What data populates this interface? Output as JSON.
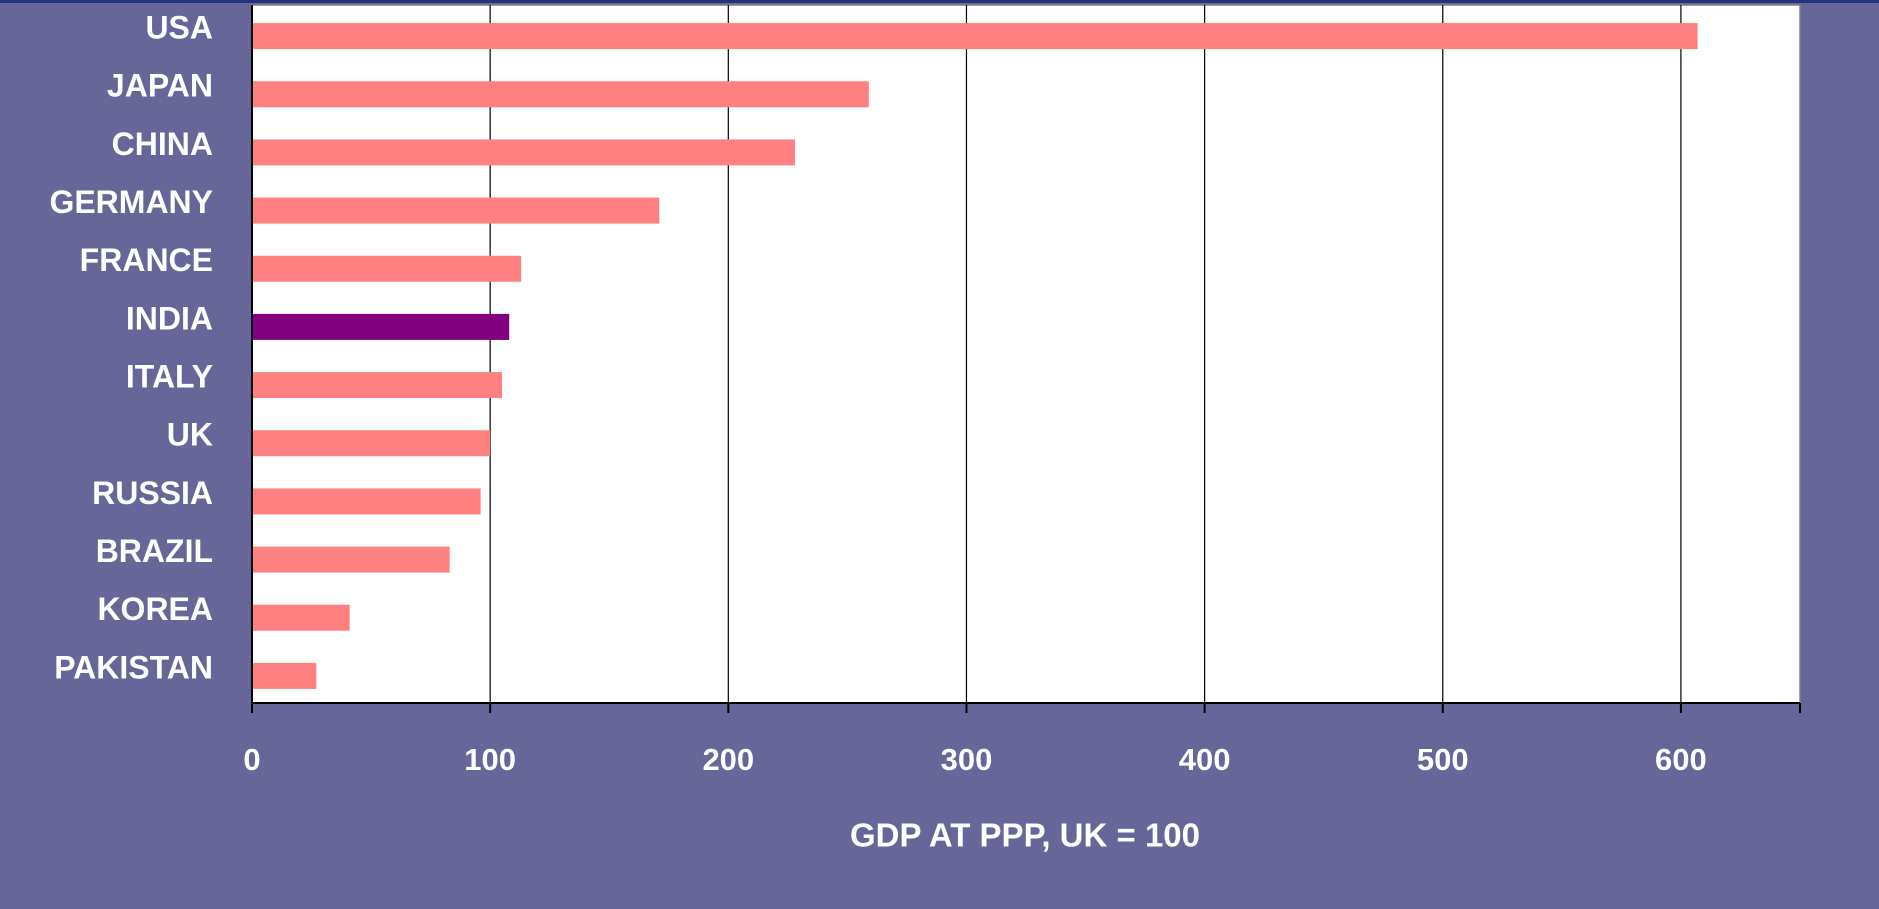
{
  "chart_data": {
    "type": "bar",
    "orientation": "horizontal",
    "categories": [
      "USA",
      "JAPAN",
      "CHINA",
      "GERMANY",
      "FRANCE",
      "INDIA",
      "ITALY",
      "UK",
      "RUSSIA",
      "BRAZIL",
      "KOREA",
      "PAKISTAN"
    ],
    "values": [
      607,
      259,
      228,
      171,
      113,
      108,
      105,
      100,
      96,
      83,
      41,
      27
    ],
    "highlight": "INDIA",
    "xlabel": "GDP AT PPP, UK = 100",
    "xlim": [
      0,
      650
    ],
    "xticks": [
      0,
      100,
      200,
      300,
      400,
      500,
      600
    ],
    "grid": "vertical",
    "legend": "none"
  },
  "colors": {
    "background": "#666699",
    "plot_area": "#ffffff",
    "bar": "#ff8080",
    "highlight_bar": "#800080",
    "text": "#ffffff",
    "gridline": "#000000"
  }
}
